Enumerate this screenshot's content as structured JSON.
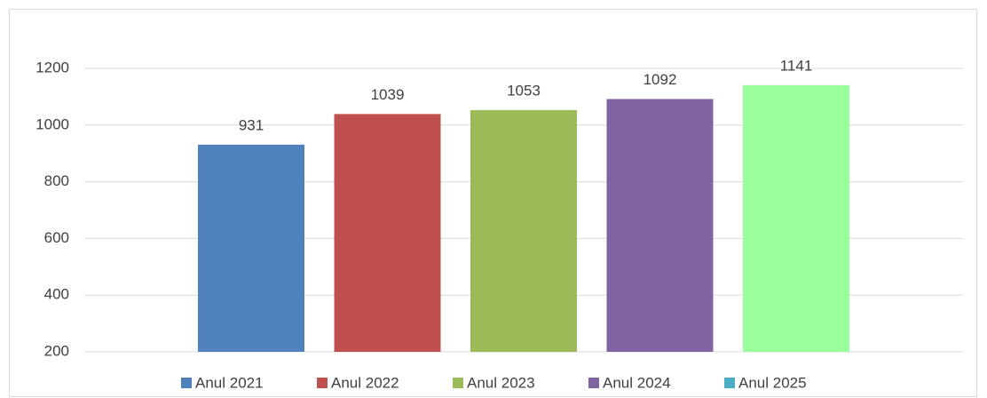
{
  "chart_data": {
    "type": "bar",
    "series": [
      {
        "name": "Anul 2021",
        "color": "#4f81bd",
        "values": [
          931
        ]
      },
      {
        "name": "Anul 2022",
        "color": "#c0504d",
        "values": [
          1039
        ]
      },
      {
        "name": "Anul 2023",
        "color": "#9bbb59",
        "values": [
          1053
        ]
      },
      {
        "name": "Anul 2024",
        "color": "#8064a2",
        "values": [
          1092
        ]
      },
      {
        "name": "Anul 2025",
        "color": "#4bacc6",
        "bar_color": "#99ff99",
        "values": [
          1141
        ]
      }
    ],
    "ylim": [
      200,
      1200
    ],
    "yticks": [
      200,
      400,
      600,
      800,
      1000,
      1200
    ],
    "grid": true,
    "legend": "bottom",
    "data_labels": true
  }
}
